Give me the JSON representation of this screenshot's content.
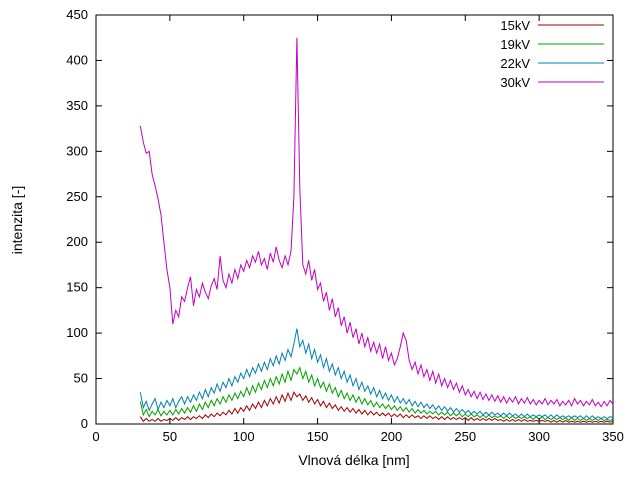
{
  "chart_data": {
    "type": "line",
    "title": "",
    "xlabel": "Vlnová délka [nm]",
    "ylabel": "intenzita [-]",
    "xlim": [
      0,
      350
    ],
    "ylim": [
      0,
      450
    ],
    "x_ticks": [
      0,
      50,
      100,
      150,
      200,
      250,
      300,
      350
    ],
    "y_ticks": [
      0,
      50,
      100,
      150,
      200,
      250,
      300,
      350,
      400,
      450
    ],
    "grid": "off",
    "legend_position": "top-right-inside",
    "frame_color": "#000000",
    "x_start": 30,
    "x_step": 2,
    "series": [
      {
        "name": "15kV",
        "color": "#a00000",
        "values": [
          8,
          3,
          6,
          3,
          5,
          3,
          6,
          3,
          5,
          4,
          6,
          4,
          7,
          4,
          7,
          5,
          8,
          5,
          8,
          6,
          9,
          6,
          10,
          7,
          11,
          8,
          12,
          9,
          13,
          10,
          15,
          11,
          17,
          12,
          18,
          14,
          20,
          15,
          22,
          17,
          24,
          18,
          26,
          20,
          28,
          22,
          30,
          23,
          32,
          25,
          34,
          26,
          35,
          30,
          33,
          26,
          31,
          24,
          29,
          22,
          27,
          20,
          25,
          18,
          23,
          17,
          21,
          15,
          19,
          14,
          18,
          13,
          17,
          12,
          16,
          11,
          15,
          10,
          14,
          10,
          13,
          9,
          12,
          9,
          12,
          8,
          11,
          8,
          11,
          7,
          10,
          7,
          10,
          7,
          9,
          6,
          9,
          6,
          9,
          6,
          8,
          5,
          8,
          5,
          8,
          5,
          7,
          5,
          7,
          5,
          7,
          4,
          7,
          4,
          6,
          4,
          6,
          4,
          6,
          4,
          6,
          4,
          5,
          3,
          5,
          3,
          5,
          3,
          5,
          3,
          5,
          3,
          4,
          3,
          4,
          3,
          4,
          3,
          4,
          2,
          4,
          2,
          4,
          2,
          4,
          2,
          3,
          2,
          3,
          2,
          3,
          2,
          3,
          2,
          3,
          2,
          3,
          2,
          3,
          2,
          3
        ]
      },
      {
        "name": "19kV",
        "color": "#00a000",
        "values": [
          25,
          10,
          16,
          8,
          14,
          10,
          16,
          9,
          14,
          10,
          15,
          10,
          16,
          11,
          17,
          12,
          18,
          13,
          20,
          14,
          22,
          16,
          24,
          18,
          26,
          20,
          28,
          22,
          30,
          24,
          32,
          26,
          34,
          28,
          36,
          30,
          40,
          32,
          42,
          35,
          45,
          38,
          48,
          40,
          50,
          42,
          52,
          44,
          55,
          46,
          58,
          48,
          60,
          55,
          62,
          50,
          58,
          46,
          54,
          42,
          50,
          40,
          46,
          36,
          44,
          34,
          40,
          30,
          37,
          28,
          34,
          26,
          32,
          24,
          30,
          22,
          28,
          21,
          26,
          19,
          24,
          18,
          22,
          17,
          21,
          16,
          20,
          15,
          19,
          14,
          18,
          13,
          17,
          12,
          16,
          12,
          15,
          11,
          14,
          11,
          14,
          10,
          13,
          10,
          13,
          9,
          12,
          9,
          12,
          8,
          11,
          8,
          11,
          8,
          10,
          7,
          10,
          7,
          10,
          7,
          9,
          7,
          9,
          6,
          9,
          6,
          9,
          6,
          8,
          6,
          8,
          6,
          8,
          5,
          8,
          5,
          8,
          5,
          7,
          5,
          7,
          5,
          7,
          5,
          7,
          4,
          7,
          4,
          6,
          4,
          6,
          4,
          6,
          4,
          6,
          4,
          6,
          4,
          5,
          4,
          5
        ]
      },
      {
        "name": "22kV",
        "color": "#0080b0",
        "values": [
          35,
          18,
          25,
          15,
          22,
          28,
          16,
          24,
          18,
          26,
          20,
          28,
          18,
          25,
          30,
          22,
          30,
          24,
          32,
          26,
          35,
          28,
          38,
          30,
          40,
          34,
          44,
          36,
          46,
          40,
          50,
          42,
          52,
          46,
          56,
          50,
          60,
          52,
          62,
          56,
          66,
          58,
          68,
          60,
          72,
          64,
          75,
          66,
          78,
          70,
          82,
          74,
          88,
          105,
          85,
          92,
          78,
          88,
          72,
          82,
          68,
          76,
          62,
          72,
          58,
          66,
          54,
          62,
          50,
          58,
          46,
          54,
          42,
          50,
          38,
          46,
          36,
          42,
          33,
          40,
          30,
          37,
          28,
          34,
          26,
          32,
          24,
          30,
          23,
          28,
          22,
          27,
          20,
          25,
          19,
          24,
          18,
          22,
          17,
          21,
          16,
          20,
          15,
          19,
          14,
          18,
          13,
          17,
          13,
          16,
          12,
          15,
          11,
          14,
          11,
          14,
          10,
          13,
          10,
          13,
          10,
          12,
          9,
          12,
          9,
          12,
          9,
          11,
          8,
          11,
          8,
          11,
          8,
          10,
          8,
          10,
          8,
          10,
          7,
          10,
          7,
          10,
          7,
          9,
          7,
          9,
          7,
          9,
          7,
          9,
          6,
          9,
          6,
          9,
          6,
          8,
          6,
          8,
          6,
          8,
          7
        ]
      },
      {
        "name": "30kV",
        "color": "#c000c0",
        "values": [
          328,
          310,
          298,
          300,
          275,
          262,
          248,
          230,
          200,
          170,
          150,
          110,
          125,
          118,
          140,
          135,
          150,
          162,
          130,
          148,
          140,
          155,
          145,
          138,
          152,
          160,
          148,
          185,
          158,
          150,
          165,
          155,
          170,
          160,
          175,
          168,
          180,
          172,
          185,
          178,
          190,
          175,
          182,
          170,
          188,
          178,
          195,
          180,
          172,
          185,
          175,
          190,
          250,
          425,
          260,
          175,
          165,
          180,
          158,
          170,
          148,
          155,
          135,
          145,
          125,
          138,
          118,
          128,
          108,
          118,
          100,
          112,
          95,
          105,
          88,
          100,
          85,
          95,
          80,
          90,
          78,
          88,
          72,
          85,
          70,
          78,
          65,
          72,
          85,
          100,
          92,
          70,
          60,
          68,
          55,
          65,
          52,
          60,
          48,
          58,
          45,
          55,
          42,
          50,
          40,
          48,
          38,
          45,
          35,
          42,
          32,
          38,
          30,
          36,
          28,
          35,
          27,
          33,
          26,
          32,
          25,
          31,
          24,
          30,
          23,
          29,
          24,
          30,
          22,
          28,
          23,
          29,
          22,
          27,
          21,
          26,
          22,
          28,
          21,
          26,
          22,
          27,
          20,
          25,
          21,
          26,
          20,
          28,
          22,
          26,
          20,
          25,
          21,
          27,
          20,
          24,
          19,
          25,
          20,
          26,
          22
        ]
      }
    ]
  }
}
